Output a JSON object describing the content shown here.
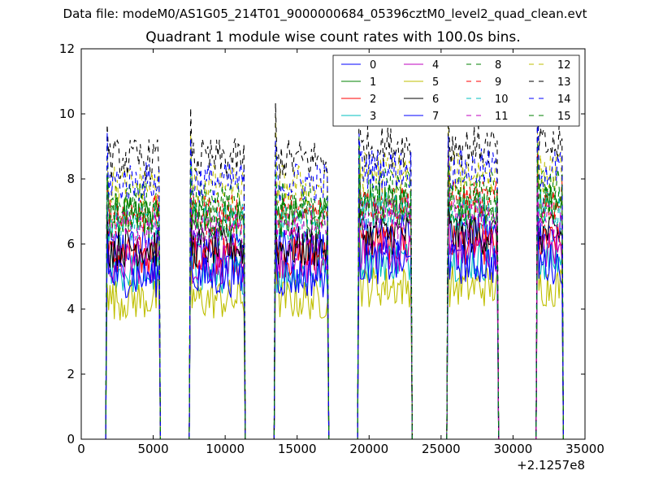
{
  "figure": {
    "suptitle": "Data file: modeM0/AS1G05_214T01_9000000684_05396cztM0_level2_quad_clean.evt"
  },
  "chart_data": {
    "type": "line",
    "title": "Quadrant 1 module wise count rates with 100.0s bins.",
    "xlabel": "",
    "ylabel": "",
    "x_offset_label": "+2.1257e8",
    "xlim": [
      0,
      35000
    ],
    "ylim": [
      0,
      12
    ],
    "xticks": [
      0,
      5000,
      10000,
      15000,
      20000,
      25000,
      30000,
      35000
    ],
    "yticks": [
      0,
      2,
      4,
      6,
      8,
      10,
      12
    ],
    "grid": false,
    "legend_position": "top-right",
    "legend_columns": 4,
    "good_time_intervals": [
      [
        1800,
        5400
      ],
      [
        7600,
        11300
      ],
      [
        13500,
        17100
      ],
      [
        19300,
        22900
      ],
      [
        25500,
        28900
      ],
      [
        31700,
        33400
      ]
    ],
    "series": [
      {
        "name": "0",
        "color": "#0000ff",
        "dash": "solid",
        "level": 5.9
      },
      {
        "name": "1",
        "color": "#008000",
        "dash": "solid",
        "level": 6.8
      },
      {
        "name": "2",
        "color": "#ff0000",
        "dash": "solid",
        "level": 5.6
      },
      {
        "name": "3",
        "color": "#00bfbf",
        "dash": "solid",
        "level": 5.1
      },
      {
        "name": "4",
        "color": "#bf00bf",
        "dash": "solid",
        "level": 5.4
      },
      {
        "name": "5",
        "color": "#bfbf00",
        "dash": "solid",
        "level": 4.3
      },
      {
        "name": "6",
        "color": "#000000",
        "dash": "solid",
        "level": 5.9
      },
      {
        "name": "7",
        "color": "#0000ff",
        "dash": "solid",
        "level": 5.0
      },
      {
        "name": "8",
        "color": "#008000",
        "dash": "dashed",
        "level": 7.3
      },
      {
        "name": "9",
        "color": "#ff0000",
        "dash": "dashed",
        "level": 6.9
      },
      {
        "name": "10",
        "color": "#00bfbf",
        "dash": "dashed",
        "level": 6.6
      },
      {
        "name": "11",
        "color": "#bf00bf",
        "dash": "dashed",
        "level": 6.4
      },
      {
        "name": "12",
        "color": "#bfbf00",
        "dash": "dashed",
        "level": 7.8
      },
      {
        "name": "13",
        "color": "#000000",
        "dash": "dashed",
        "level": 8.6
      },
      {
        "name": "14",
        "color": "#0000ff",
        "dash": "dashed",
        "level": 7.9
      },
      {
        "name": "15",
        "color": "#008000",
        "dash": "dashed",
        "level": 6.9
      }
    ]
  }
}
